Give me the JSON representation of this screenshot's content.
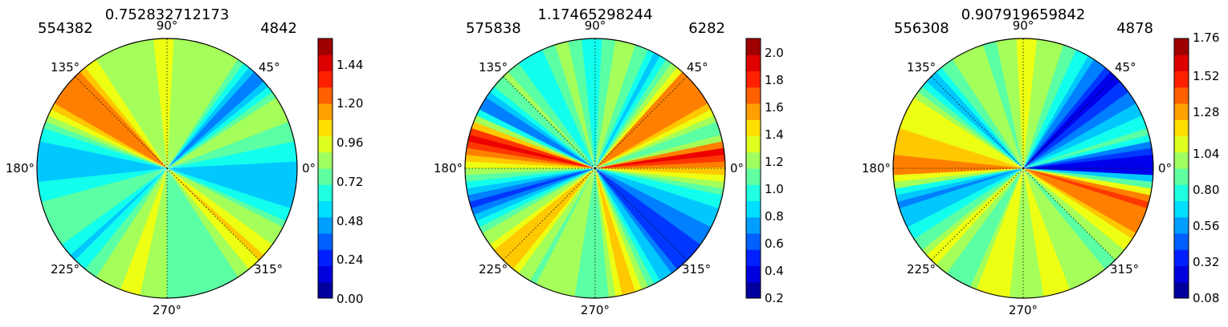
{
  "chart_data": [
    {
      "type": "heatmap",
      "subtype": "polar-contour",
      "title": "0.752832712173",
      "corner_left": "554382",
      "corner_right": "4842",
      "angle_ticks": [
        "0°",
        "45°",
        "90°",
        "135°",
        "180°",
        "225°",
        "270°",
        "315°"
      ],
      "colorbar": {
        "ticks": [
          "0.00",
          "0.24",
          "0.48",
          "0.72",
          "0.96",
          "1.20",
          "1.44"
        ],
        "min": 0.0,
        "max": 1.6
      },
      "colormap": "jet",
      "grid": true,
      "angular_profile": [
        [
          0,
          0.5
        ],
        [
          15,
          0.75
        ],
        [
          30,
          0.85
        ],
        [
          45,
          0.4
        ],
        [
          60,
          0.85
        ],
        [
          75,
          0.82
        ],
        [
          90,
          0.95
        ],
        [
          105,
          0.85
        ],
        [
          120,
          0.8
        ],
        [
          135,
          1.25
        ],
        [
          150,
          1.2
        ],
        [
          165,
          0.6
        ],
        [
          180,
          0.45
        ],
        [
          195,
          0.7
        ],
        [
          210,
          0.75
        ],
        [
          225,
          0.55
        ],
        [
          240,
          0.85
        ],
        [
          255,
          0.95
        ],
        [
          270,
          0.8
        ],
        [
          285,
          0.75
        ],
        [
          300,
          0.7
        ],
        [
          315,
          1.05
        ],
        [
          330,
          0.85
        ],
        [
          345,
          0.5
        ]
      ],
      "ray_angles": [
        90,
        270,
        135,
        315
      ]
    },
    {
      "type": "heatmap",
      "subtype": "polar-contour",
      "title": "1.17465298244",
      "corner_left": "575838",
      "corner_right": "6282",
      "angle_ticks": [
        "0°",
        "45°",
        "90°",
        "135°",
        "180°",
        "225°",
        "270°",
        "315°"
      ],
      "colorbar": {
        "ticks": [
          "0.2",
          "0.4",
          "0.6",
          "0.8",
          "1.0",
          "1.2",
          "1.4",
          "1.6",
          "1.8",
          "2.0"
        ],
        "min": 0.2,
        "max": 2.1
      },
      "colormap": "jet",
      "grid": true,
      "angular_profile": [
        [
          0,
          1.5
        ],
        [
          8,
          1.9
        ],
        [
          15,
          0.95
        ],
        [
          30,
          1.6
        ],
        [
          45,
          1.65
        ],
        [
          60,
          0.8
        ],
        [
          75,
          1.3
        ],
        [
          90,
          0.9
        ],
        [
          105,
          1.25
        ],
        [
          120,
          0.85
        ],
        [
          135,
          1.2
        ],
        [
          150,
          0.6
        ],
        [
          165,
          1.95
        ],
        [
          180,
          1.3
        ],
        [
          195,
          0.55
        ],
        [
          210,
          1.1
        ],
        [
          225,
          1.6
        ],
        [
          240,
          1.1
        ],
        [
          255,
          1.3
        ],
        [
          270,
          1.0
        ],
        [
          285,
          1.5
        ],
        [
          300,
          0.9
        ],
        [
          315,
          0.45
        ],
        [
          330,
          0.7
        ],
        [
          345,
          0.9
        ]
      ],
      "ray_angles": [
        0,
        180,
        90,
        270,
        45,
        225,
        135,
        315
      ]
    },
    {
      "type": "heatmap",
      "subtype": "polar-contour",
      "title": "0.907919659842",
      "corner_left": "556308",
      "corner_right": "4878",
      "angle_ticks": [
        "0°",
        "45°",
        "90°",
        "135°",
        "180°",
        "225°",
        "270°",
        "315°"
      ],
      "colorbar": {
        "ticks": [
          "0.08",
          "0.32",
          "0.56",
          "0.80",
          "1.04",
          "1.28",
          "1.52",
          "1.76"
        ],
        "min": 0.08,
        "max": 1.8
      },
      "colormap": "jet",
      "grid": true,
      "angular_profile": [
        [
          0,
          0.2
        ],
        [
          8,
          0.35
        ],
        [
          15,
          0.9
        ],
        [
          30,
          0.55
        ],
        [
          45,
          0.25
        ],
        [
          60,
          0.7
        ],
        [
          75,
          1.0
        ],
        [
          90,
          1.1
        ],
        [
          105,
          0.9
        ],
        [
          120,
          1.05
        ],
        [
          135,
          0.6
        ],
        [
          150,
          1.15
        ],
        [
          165,
          1.2
        ],
        [
          180,
          1.4
        ],
        [
          195,
          0.5
        ],
        [
          210,
          0.75
        ],
        [
          225,
          1.1
        ],
        [
          240,
          0.8
        ],
        [
          255,
          1.2
        ],
        [
          270,
          1.0
        ],
        [
          285,
          1.1
        ],
        [
          300,
          1.0
        ],
        [
          315,
          0.9
        ],
        [
          330,
          1.3
        ],
        [
          345,
          1.45
        ]
      ],
      "ray_angles": [
        0,
        180,
        90,
        270,
        135,
        315,
        45,
        225
      ]
    }
  ]
}
